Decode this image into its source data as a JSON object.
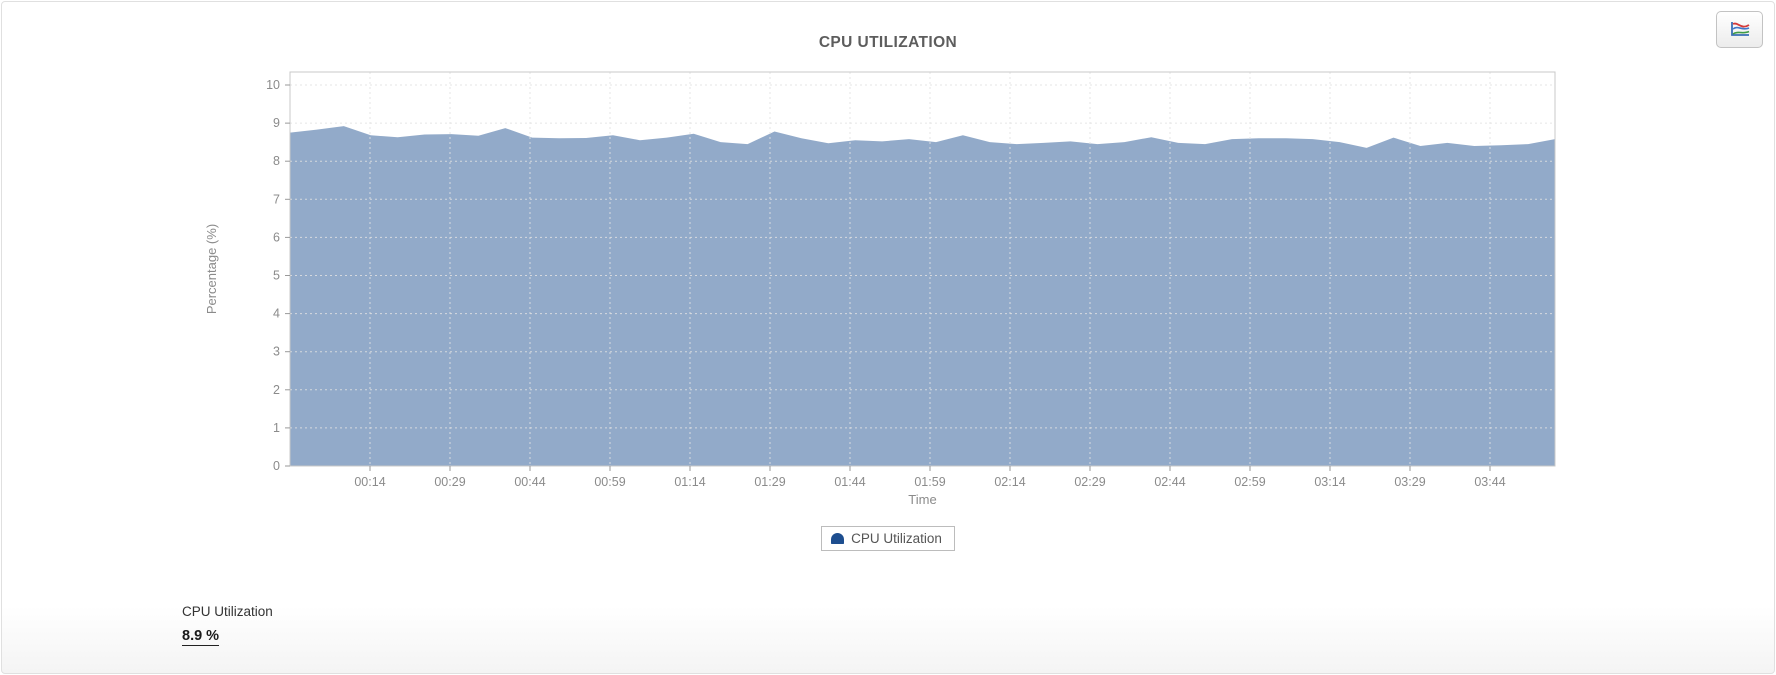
{
  "toolbar": {
    "chart_button_icon": "line-chart-icon"
  },
  "chart_data": {
    "type": "area",
    "title": "CPU UTILIZATION",
    "xlabel": "Time",
    "ylabel": "Percentage (%)",
    "ylim": [
      0,
      10.3
    ],
    "y_ticks": [
      0,
      1,
      2,
      3,
      4,
      5,
      6,
      7,
      8,
      9,
      10
    ],
    "x_ticks": [
      "00:14",
      "00:29",
      "00:44",
      "00:59",
      "01:14",
      "01:29",
      "01:44",
      "01:59",
      "02:14",
      "02:29",
      "02:44",
      "02:59",
      "03:14",
      "03:29",
      "03:44"
    ],
    "grid": true,
    "legend_position": "bottom",
    "series": [
      {
        "name": "CPU Utilization",
        "color": "#1d4e8f",
        "fill": "#8ca5c6",
        "values": [
          8.75,
          8.83,
          8.92,
          8.68,
          8.63,
          8.7,
          8.71,
          8.67,
          8.87,
          8.62,
          8.6,
          8.61,
          8.68,
          8.55,
          8.62,
          8.72,
          8.5,
          8.45,
          8.78,
          8.6,
          8.47,
          8.55,
          8.52,
          8.58,
          8.5,
          8.68,
          8.5,
          8.45,
          8.48,
          8.52,
          8.45,
          8.5,
          8.63,
          8.48,
          8.45,
          8.58,
          8.6,
          8.6,
          8.58,
          8.5,
          8.35,
          8.62,
          8.4,
          8.48,
          8.4,
          8.42,
          8.45,
          8.58
        ]
      }
    ]
  },
  "summary": {
    "label": "CPU Utilization",
    "value": "8.9 %"
  }
}
